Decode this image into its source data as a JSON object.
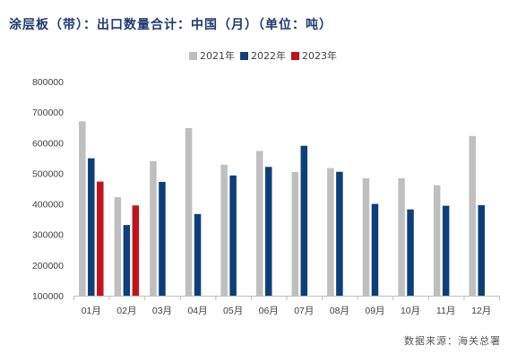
{
  "chart_data": {
    "type": "bar",
    "title": "涂层板（带）：出口数量合计：中国（月）（单位：吨）",
    "categories": [
      "01月",
      "02月",
      "03月",
      "04月",
      "05月",
      "06月",
      "07月",
      "08月",
      "09月",
      "10月",
      "11月",
      "12月"
    ],
    "series": [
      {
        "name": "2021年",
        "color": "#bfbfbf",
        "values": [
          670000,
          422000,
          540000,
          648000,
          528000,
          573000,
          504000,
          517000,
          484000,
          484000,
          461000,
          622000
        ]
      },
      {
        "name": "2022年",
        "color": "#0d3f7a",
        "values": [
          549000,
          331000,
          472000,
          367000,
          493000,
          521000,
          590000,
          505000,
          400000,
          382000,
          394000,
          396000
        ]
      },
      {
        "name": "2023年",
        "color": "#c0141c",
        "values": [
          473000,
          395000,
          null,
          null,
          null,
          null,
          null,
          null,
          null,
          null,
          null,
          null
        ]
      }
    ],
    "yticks": [
      "800000",
      "700000",
      "600000",
      "500000",
      "400000",
      "300000",
      "200000",
      "100000"
    ],
    "ylim": [
      100000,
      800000
    ],
    "xlabel": "",
    "ylabel": "",
    "grid": false,
    "legend": "top-center",
    "source": "数据来源：海关总署"
  }
}
